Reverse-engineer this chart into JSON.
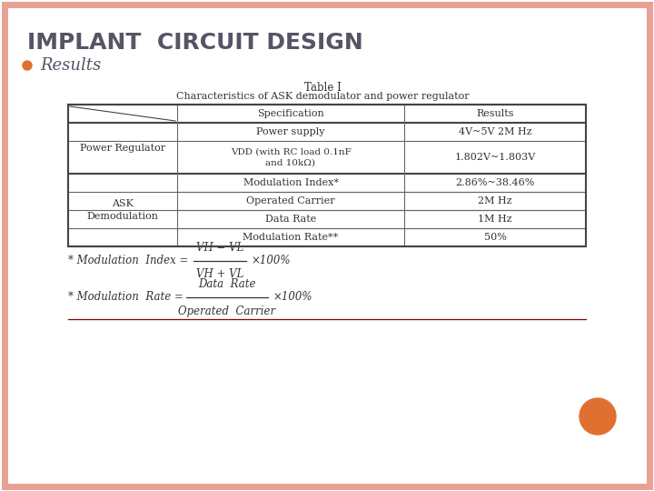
{
  "title": "IMPLANT  CIRCUIT DESIGN",
  "bullet": "Results",
  "table_title_line1": "Table I",
  "table_title_line2": "Characteristics of ASK demodulator and power regulator",
  "bg_color": "#FFFFFF",
  "border_color": "#E8A090",
  "title_color": "#555566",
  "bullet_color": "#E07030",
  "table_text_color": "#333333",
  "orange_dot_color": "#E07030",
  "formula1_parts": {
    "prefix": "* Modulation  Index = ",
    "numerator": "VH − VL",
    "denominator": "VH + VL",
    "suffix": "×100%"
  },
  "formula2_parts": {
    "prefix": "* Modulation  Rate = ",
    "numerator": "Data  Rate",
    "denominator": "Operated  Carrier",
    "suffix": "×100%"
  },
  "table": {
    "col_labels": [
      "",
      "Specification",
      "Results"
    ],
    "rows": [
      [
        "",
        "Power supply",
        "4V~5V 2M Hz"
      ],
      [
        "Power Regulator",
        "VDD (with RC load 0.1nF\nand 10kΩ)",
        "1.802V~1.803V"
      ],
      [
        "",
        "Modulation Index*",
        "2.86%~38.46%"
      ],
      [
        "ASK\nDemodulation",
        "Operated Carrier",
        "2M Hz"
      ],
      [
        "",
        "Data Rate",
        "1M Hz"
      ],
      [
        "",
        "Modulation Rate**",
        "50%"
      ]
    ]
  }
}
